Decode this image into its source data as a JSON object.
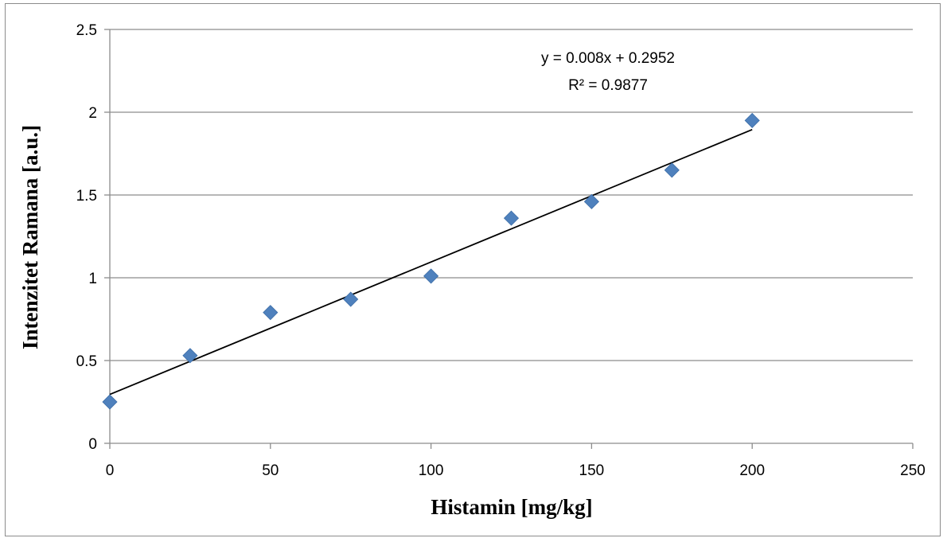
{
  "chart_data": {
    "type": "scatter",
    "title": "",
    "xlabel": "Histamin [mg/kg]",
    "ylabel": "Intenzitet Ramana [a.u.]",
    "xlim": [
      0,
      250
    ],
    "ylim": [
      0,
      2.5
    ],
    "x_ticks": [
      "0",
      "50",
      "100",
      "150",
      "200",
      "250"
    ],
    "y_ticks": [
      "0",
      "0.5",
      "1",
      "1.5",
      "2",
      "2.5"
    ],
    "grid": "horizontal",
    "legend": "none",
    "series": [
      {
        "x": [
          0,
          25,
          50,
          75,
          100,
          125,
          150,
          175,
          200
        ],
        "y": [
          0.25,
          0.53,
          0.79,
          0.87,
          1.01,
          1.36,
          1.46,
          1.65,
          1.95
        ],
        "marker": "diamond",
        "color": "#4f81bd"
      }
    ],
    "trendline": {
      "type": "linear",
      "slope": 0.008,
      "intercept": 0.2952,
      "x_range": [
        0,
        200
      ],
      "equation_label": "y = 0.008x + 0.2952",
      "r2_label": "R² = 0.9877",
      "color": "#000000"
    },
    "colors": {
      "grid": "#8c8c8c",
      "axis": "#8c8c8c",
      "marker": "#4f81bd"
    }
  }
}
